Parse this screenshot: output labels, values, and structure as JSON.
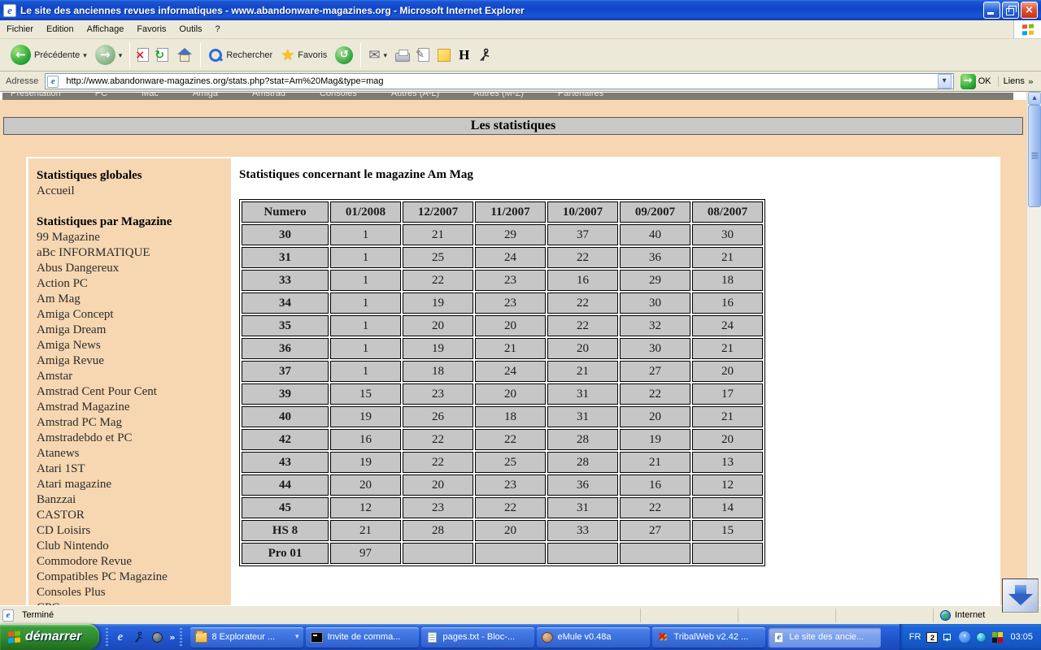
{
  "titlebar": {
    "title": "Le site des anciennes revues informatiques - www.abandonware-magazines.org - Microsoft Internet Explorer"
  },
  "menubar": {
    "items": [
      "Fichier",
      "Edition",
      "Affichage",
      "Favoris",
      "Outils",
      "?"
    ]
  },
  "toolbar": {
    "back_label": "Précédente",
    "search_label": "Rechercher",
    "favorites_label": "Favoris"
  },
  "addressbar": {
    "label": "Adresse",
    "url": "http://www.abandonware-magazines.org/stats.php?stat=Am%20Mag&type=mag",
    "go_label": "OK",
    "links_label": "Liens"
  },
  "topnav": {
    "items": [
      "Présentation",
      "PC",
      "Mac",
      "Amiga",
      "Amstrad",
      "Consoles",
      "Autres (A-L)",
      "Autres (M-Z)",
      "Partenaires"
    ]
  },
  "banner": {
    "title": "Les statistiques"
  },
  "sidebar": {
    "heading_global": "Statistiques globales",
    "home_label": "Accueil",
    "heading_magazine": "Statistiques par Magazine",
    "magazines": [
      "99 Magazine",
      "aBc INFORMATIQUE",
      "Abus Dangereux",
      "Action PC",
      "Am Mag",
      "Amiga Concept",
      "Amiga Dream",
      "Amiga News",
      "Amiga Revue",
      "Amstar",
      "Amstrad Cent Pour Cent",
      "Amstrad Magazine",
      "Amstrad PC Mag",
      "Amstradebdo et PC",
      "Atanews",
      "Atari 1ST",
      "Atari magazine",
      "Banzzai",
      "CASTOR",
      "CD Loisirs",
      "Club Nintendo",
      "Commodore Revue",
      "Compatibles PC Magazine",
      "Consoles Plus",
      "CPC"
    ]
  },
  "content": {
    "title": "Statistiques concernant le magazine Am Mag",
    "table": {
      "columns": [
        "Numero",
        "01/2008",
        "12/2007",
        "11/2007",
        "10/2007",
        "09/2007",
        "08/2007"
      ],
      "rows": [
        [
          "30",
          "1",
          "21",
          "29",
          "37",
          "40",
          "30"
        ],
        [
          "31",
          "1",
          "25",
          "24",
          "22",
          "36",
          "21"
        ],
        [
          "33",
          "1",
          "22",
          "23",
          "16",
          "29",
          "18"
        ],
        [
          "34",
          "1",
          "19",
          "23",
          "22",
          "30",
          "16"
        ],
        [
          "35",
          "1",
          "20",
          "20",
          "22",
          "32",
          "24"
        ],
        [
          "36",
          "1",
          "19",
          "21",
          "20",
          "30",
          "21"
        ],
        [
          "37",
          "1",
          "18",
          "24",
          "21",
          "27",
          "20"
        ],
        [
          "39",
          "15",
          "23",
          "20",
          "31",
          "22",
          "17"
        ],
        [
          "40",
          "19",
          "26",
          "18",
          "31",
          "20",
          "21"
        ],
        [
          "42",
          "16",
          "22",
          "22",
          "28",
          "19",
          "20"
        ],
        [
          "43",
          "19",
          "22",
          "25",
          "28",
          "21",
          "13"
        ],
        [
          "44",
          "20",
          "20",
          "23",
          "36",
          "16",
          "12"
        ],
        [
          "45",
          "12",
          "23",
          "22",
          "31",
          "22",
          "14"
        ],
        [
          "HS 8",
          "21",
          "28",
          "20",
          "33",
          "27",
          "15"
        ],
        [
          "Pro 01",
          "97",
          "",
          "",
          "",
          "",
          ""
        ]
      ]
    }
  },
  "statusbar": {
    "status": "Terminé",
    "zone": "Internet"
  },
  "taskbar": {
    "start_label": "démarrer",
    "quicklaunch": [
      {
        "icon": "browser-quick-icon"
      },
      {
        "icon": "aim-quick-icon"
      },
      {
        "icon": "round-app-quick-icon"
      }
    ],
    "tasks": [
      {
        "label": "8 Explorateur ...",
        "icon": "folder",
        "group": true,
        "active": false
      },
      {
        "label": "Invite de comma...",
        "icon": "cmd",
        "group": false,
        "active": false
      },
      {
        "label": "pages.txt - Bloc-...",
        "icon": "note",
        "group": false,
        "active": false
      },
      {
        "label": "eMule v0.48a",
        "icon": "emule",
        "group": false,
        "active": false
      },
      {
        "label": "TribalWeb v2.42 ...",
        "icon": "tribal",
        "group": false,
        "active": false
      },
      {
        "label": "Le site des ancie...",
        "icon": "ie",
        "group": false,
        "active": true
      }
    ],
    "tray": {
      "lang": "FR",
      "kbd": "2",
      "clock": "03:05"
    }
  },
  "colors": {
    "page_bg": "#f7d7b2",
    "table_cell": "#c6c6c6",
    "banner_bg": "#c8c8c8",
    "titlebar_blue": "#1b55d3",
    "taskbar_blue": "#2157d2",
    "start_green": "#2e8a2e"
  }
}
